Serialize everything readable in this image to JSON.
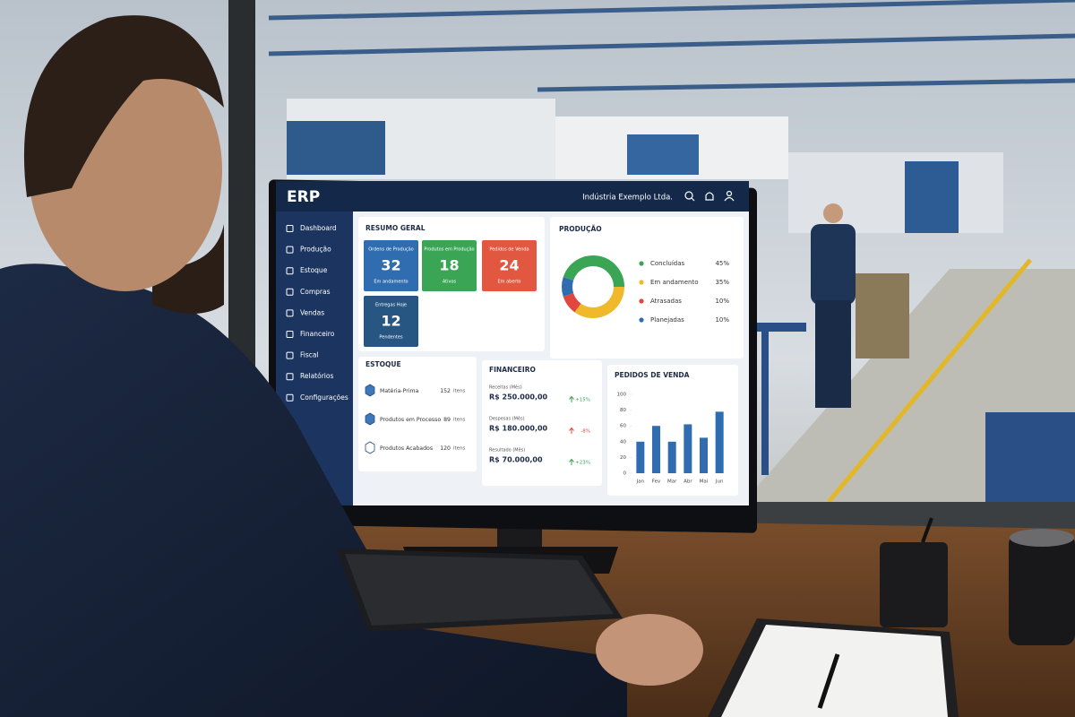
{
  "screen": {
    "logo": "ERP",
    "company": "Indústria Exemplo Ltda.",
    "menu": [
      "Dashboard",
      "Produção",
      "Estoque",
      "Compras",
      "Vendas",
      "Financeiro",
      "Fiscal",
      "Relatórios",
      "Configurações"
    ],
    "summary": {
      "title": "RESUMO GERAL",
      "cards": [
        {
          "label": "Ordens de Produção",
          "value": 32,
          "note": "Em andamento",
          "color": "#2f6db0"
        },
        {
          "label": "Produtos em Produção",
          "value": 18,
          "note": "Ativos",
          "color": "#3aa655"
        },
        {
          "label": "Pedidos de Venda",
          "value": 24,
          "note": "Em aberto",
          "color": "#e2573f"
        },
        {
          "label": "Entregas Hoje",
          "value": 12,
          "note": "Pendentes",
          "color": "#285683"
        }
      ]
    },
    "production": {
      "type": "pie",
      "title": "PRODUÇÃO",
      "categories": [
        "Concluídas",
        "Em andamento",
        "Atrasadas",
        "Planejadas"
      ],
      "values": [
        45,
        35,
        10,
        10
      ],
      "value_labels": [
        "45%",
        "35%",
        "10%",
        "10%"
      ],
      "colors": [
        "#3aa655",
        "#f0b92b",
        "#e2473f",
        "#2f6db0"
      ]
    },
    "stock": {
      "title": "ESTOQUE",
      "items": [
        {
          "label": "Matéria-Prima",
          "value": 152,
          "unit": "itens"
        },
        {
          "label": "Produtos em Processo",
          "value": 89,
          "unit": "itens"
        },
        {
          "label": "Produtos Acabados",
          "value": 120,
          "unit": "itens"
        }
      ]
    },
    "finance": {
      "title": "FINANCEIRO",
      "items": [
        {
          "label": "Receitas (Mês)",
          "value": "R$ 250.000,00",
          "change": "+15%",
          "color": "#3aa655"
        },
        {
          "label": "Despesas (Mês)",
          "value": "R$ 180.000,00",
          "change": "-8%",
          "color": "#e2473f"
        },
        {
          "label": "Resultado (Mês)",
          "value": "R$ 70.000,00",
          "change": "+23%",
          "color": "#3aa655"
        }
      ]
    },
    "sales": {
      "type": "bar",
      "title": "PEDIDOS DE VENDA",
      "categories": [
        "Jan",
        "Fev",
        "Mar",
        "Abr",
        "Mai",
        "Jun"
      ],
      "values": [
        40,
        60,
        40,
        62,
        45,
        78
      ],
      "color": "#2f6db0",
      "ylim": [
        0,
        100
      ],
      "yticks": [
        0,
        20,
        40,
        60,
        80,
        100
      ]
    }
  }
}
